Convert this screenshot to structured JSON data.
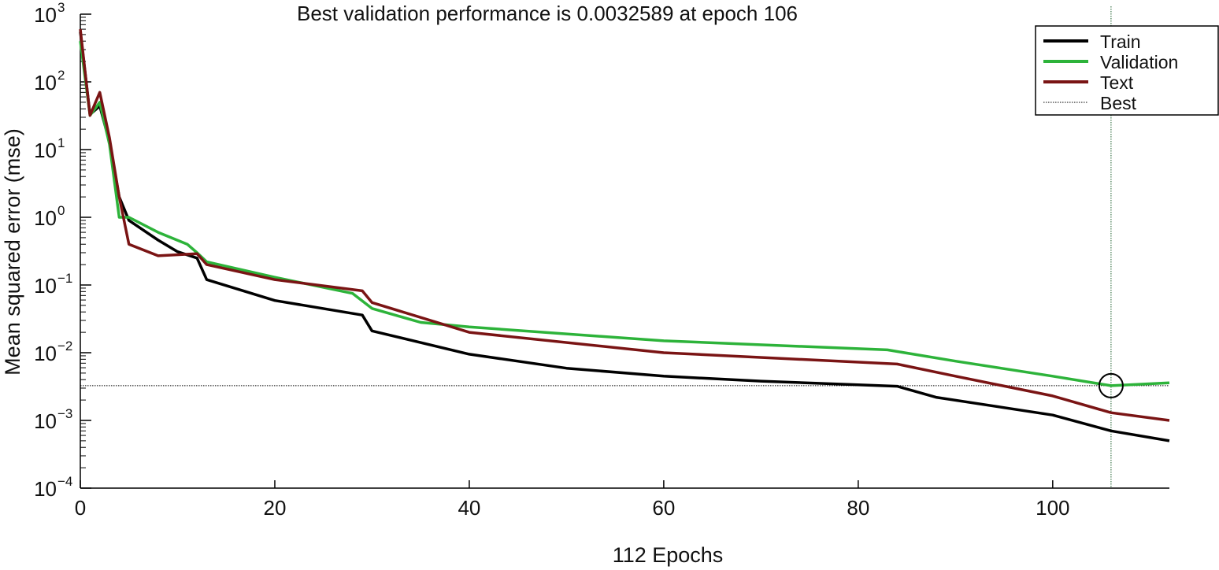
{
  "chart_data": {
    "type": "line",
    "title": "Best validation performance is 0.0032589 at epoch 106",
    "xlabel": "112 Epochs",
    "ylabel": "Mean squared error (mse)",
    "xlim": [
      0,
      112
    ],
    "ylim": [
      0.0001,
      1000
    ],
    "yscale": "log",
    "xticks": [
      0,
      20,
      40,
      60,
      80,
      100
    ],
    "yticks": [
      {
        "value": 1000,
        "base": "10",
        "exp": "3"
      },
      {
        "value": 100,
        "base": "10",
        "exp": "2"
      },
      {
        "value": 10,
        "base": "10",
        "exp": "1"
      },
      {
        "value": 1,
        "base": "10",
        "exp": "0"
      },
      {
        "value": 0.1,
        "base": "10",
        "exp": "−1"
      },
      {
        "value": 0.01,
        "base": "10",
        "exp": "−2"
      },
      {
        "value": 0.001,
        "base": "10",
        "exp": "−3"
      },
      {
        "value": 0.0001,
        "base": "10",
        "exp": "−4"
      }
    ],
    "legend_position": "top-right",
    "series": [
      {
        "name": "Train",
        "color": "#000000",
        "x": [
          0,
          1,
          2,
          3,
          4,
          5,
          8,
          10,
          12,
          13,
          20,
          29,
          30,
          40,
          50,
          60,
          70,
          84,
          88,
          100,
          106,
          112
        ],
        "y": [
          550,
          33,
          44,
          13,
          2,
          0.9,
          0.46,
          0.31,
          0.25,
          0.12,
          0.059,
          0.036,
          0.021,
          0.0095,
          0.0059,
          0.0045,
          0.0038,
          0.0032,
          0.0022,
          0.0012,
          0.0007,
          0.0005
        ]
      },
      {
        "name": "Validation",
        "color": "#2db33a",
        "x": [
          0,
          1,
          2,
          3,
          4,
          5,
          8,
          11,
          12,
          13,
          20,
          28,
          30,
          35,
          40,
          60,
          83,
          90,
          100,
          106,
          112
        ],
        "y": [
          400,
          32,
          50,
          12,
          1.0,
          1.0,
          0.6,
          0.4,
          0.3,
          0.22,
          0.13,
          0.075,
          0.045,
          0.028,
          0.024,
          0.015,
          0.011,
          0.0075,
          0.0045,
          0.0032589,
          0.0036
        ]
      },
      {
        "name": "Text",
        "color": "#7a1414",
        "x": [
          0,
          1,
          2,
          3,
          4,
          5,
          8,
          12,
          13,
          20,
          29,
          30,
          40,
          60,
          84,
          90,
          100,
          106,
          112
        ],
        "y": [
          600,
          32,
          70,
          15,
          2,
          0.4,
          0.27,
          0.29,
          0.2,
          0.12,
          0.082,
          0.055,
          0.02,
          0.01,
          0.0068,
          0.0045,
          0.0023,
          0.0013,
          0.001
        ]
      }
    ],
    "best": {
      "name": "Best",
      "epoch": 106,
      "value": 0.0032589
    }
  }
}
